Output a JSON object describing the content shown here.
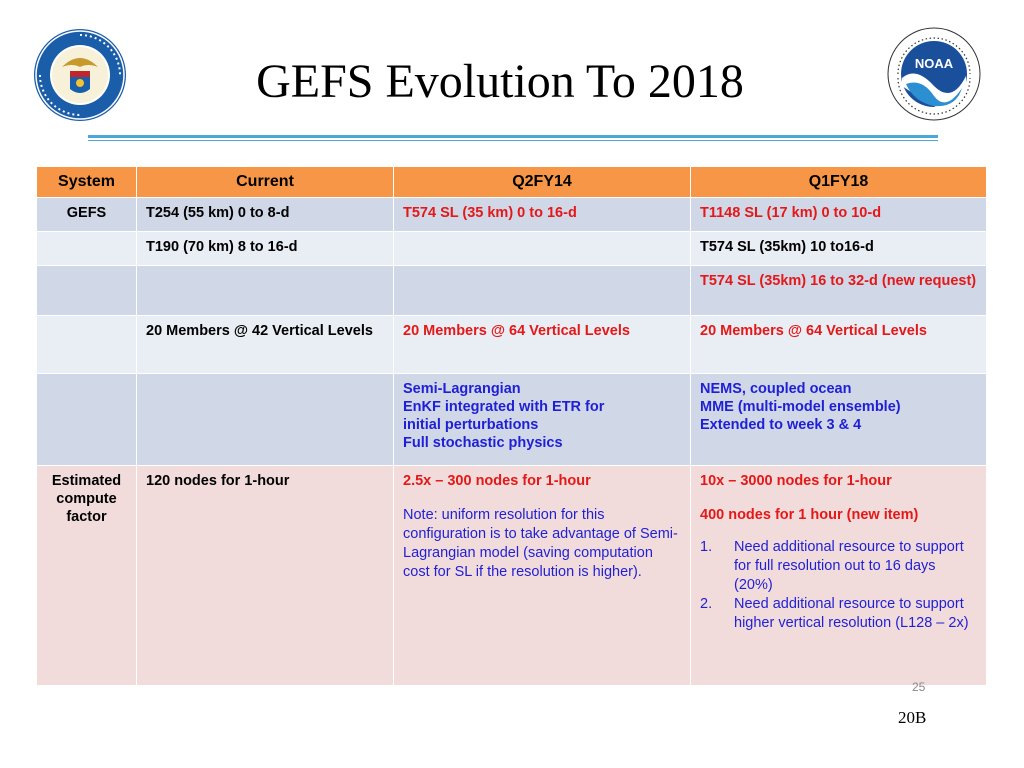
{
  "slide": {
    "title": "GEFS Evolution To 2018",
    "page_number": "25",
    "slide_id": "20B"
  },
  "logos": {
    "left": "department-of-commerce-seal",
    "right": "noaa-logo"
  },
  "table": {
    "headers": [
      "System",
      "Current",
      "Q2FY14",
      "Q1FY18"
    ],
    "rows": [
      {
        "system": "GEFS",
        "current": "T254 (55 km) 0 to 8-d",
        "q2fy14": "T574 SL (35 km) 0 to 16-d",
        "q1fy18": "T1148  SL (17 km) 0 to 10-d"
      },
      {
        "system": "",
        "current": "T190 (70 km) 8 to 16-d",
        "q2fy14": "",
        "q1fy18": "T574 SL (35km)  10 to16-d"
      },
      {
        "system": "",
        "current": "",
        "q2fy14": "",
        "q1fy18": "T574 SL (35km)  16 to 32-d (new request)"
      },
      {
        "system": "",
        "current": "20 Members @ 42 Vertical Levels",
        "q2fy14": "20 Members @ 64 Vertical Levels",
        "q1fy18": "20 Members @ 64 Vertical Levels"
      },
      {
        "system": "",
        "current": "",
        "q2fy14_lines": [
          "Semi-Lagrangian",
          "EnKF integrated with ETR for",
          "initial perturbations",
          "Full stochastic  physics"
        ],
        "q1fy18_lines": [
          "NEMS, coupled ocean",
          "MME (multi-model  ensemble)",
          "Extended to week 3 & 4"
        ]
      },
      {
        "system": "Estimated compute factor",
        "current": "120 nodes for 1-hour",
        "q2fy14": "2.5x – 300 nodes for 1-hour",
        "q2fy14_note": "Note:  uniform resolution for this configuration  is to take advantage  of Semi-Lagrangian  model (saving computation  cost for SL if the resolution  is higher).",
        "q1fy18": "10x – 3000 nodes for 1-hour",
        "q1fy18_new": "400 nodes for 1 hour (new item)",
        "q1fy18_items": [
          {
            "num": "1.",
            "text": "Need additional  resource to support for full resolution out to 16 days (20%)"
          },
          {
            "num": "2.",
            "text": "Need additional  resource to support higher vertical resolution  (L128 – 2x)"
          }
        ]
      }
    ]
  },
  "colors": {
    "header_bg": "#f79646",
    "row_dark": "#d0d8e8",
    "row_light": "#e9edf4",
    "row_compute": "#f2dcdb",
    "text_red": "#e41818",
    "text_blue": "#1f1fd6",
    "rule": "#4aa7d6"
  }
}
